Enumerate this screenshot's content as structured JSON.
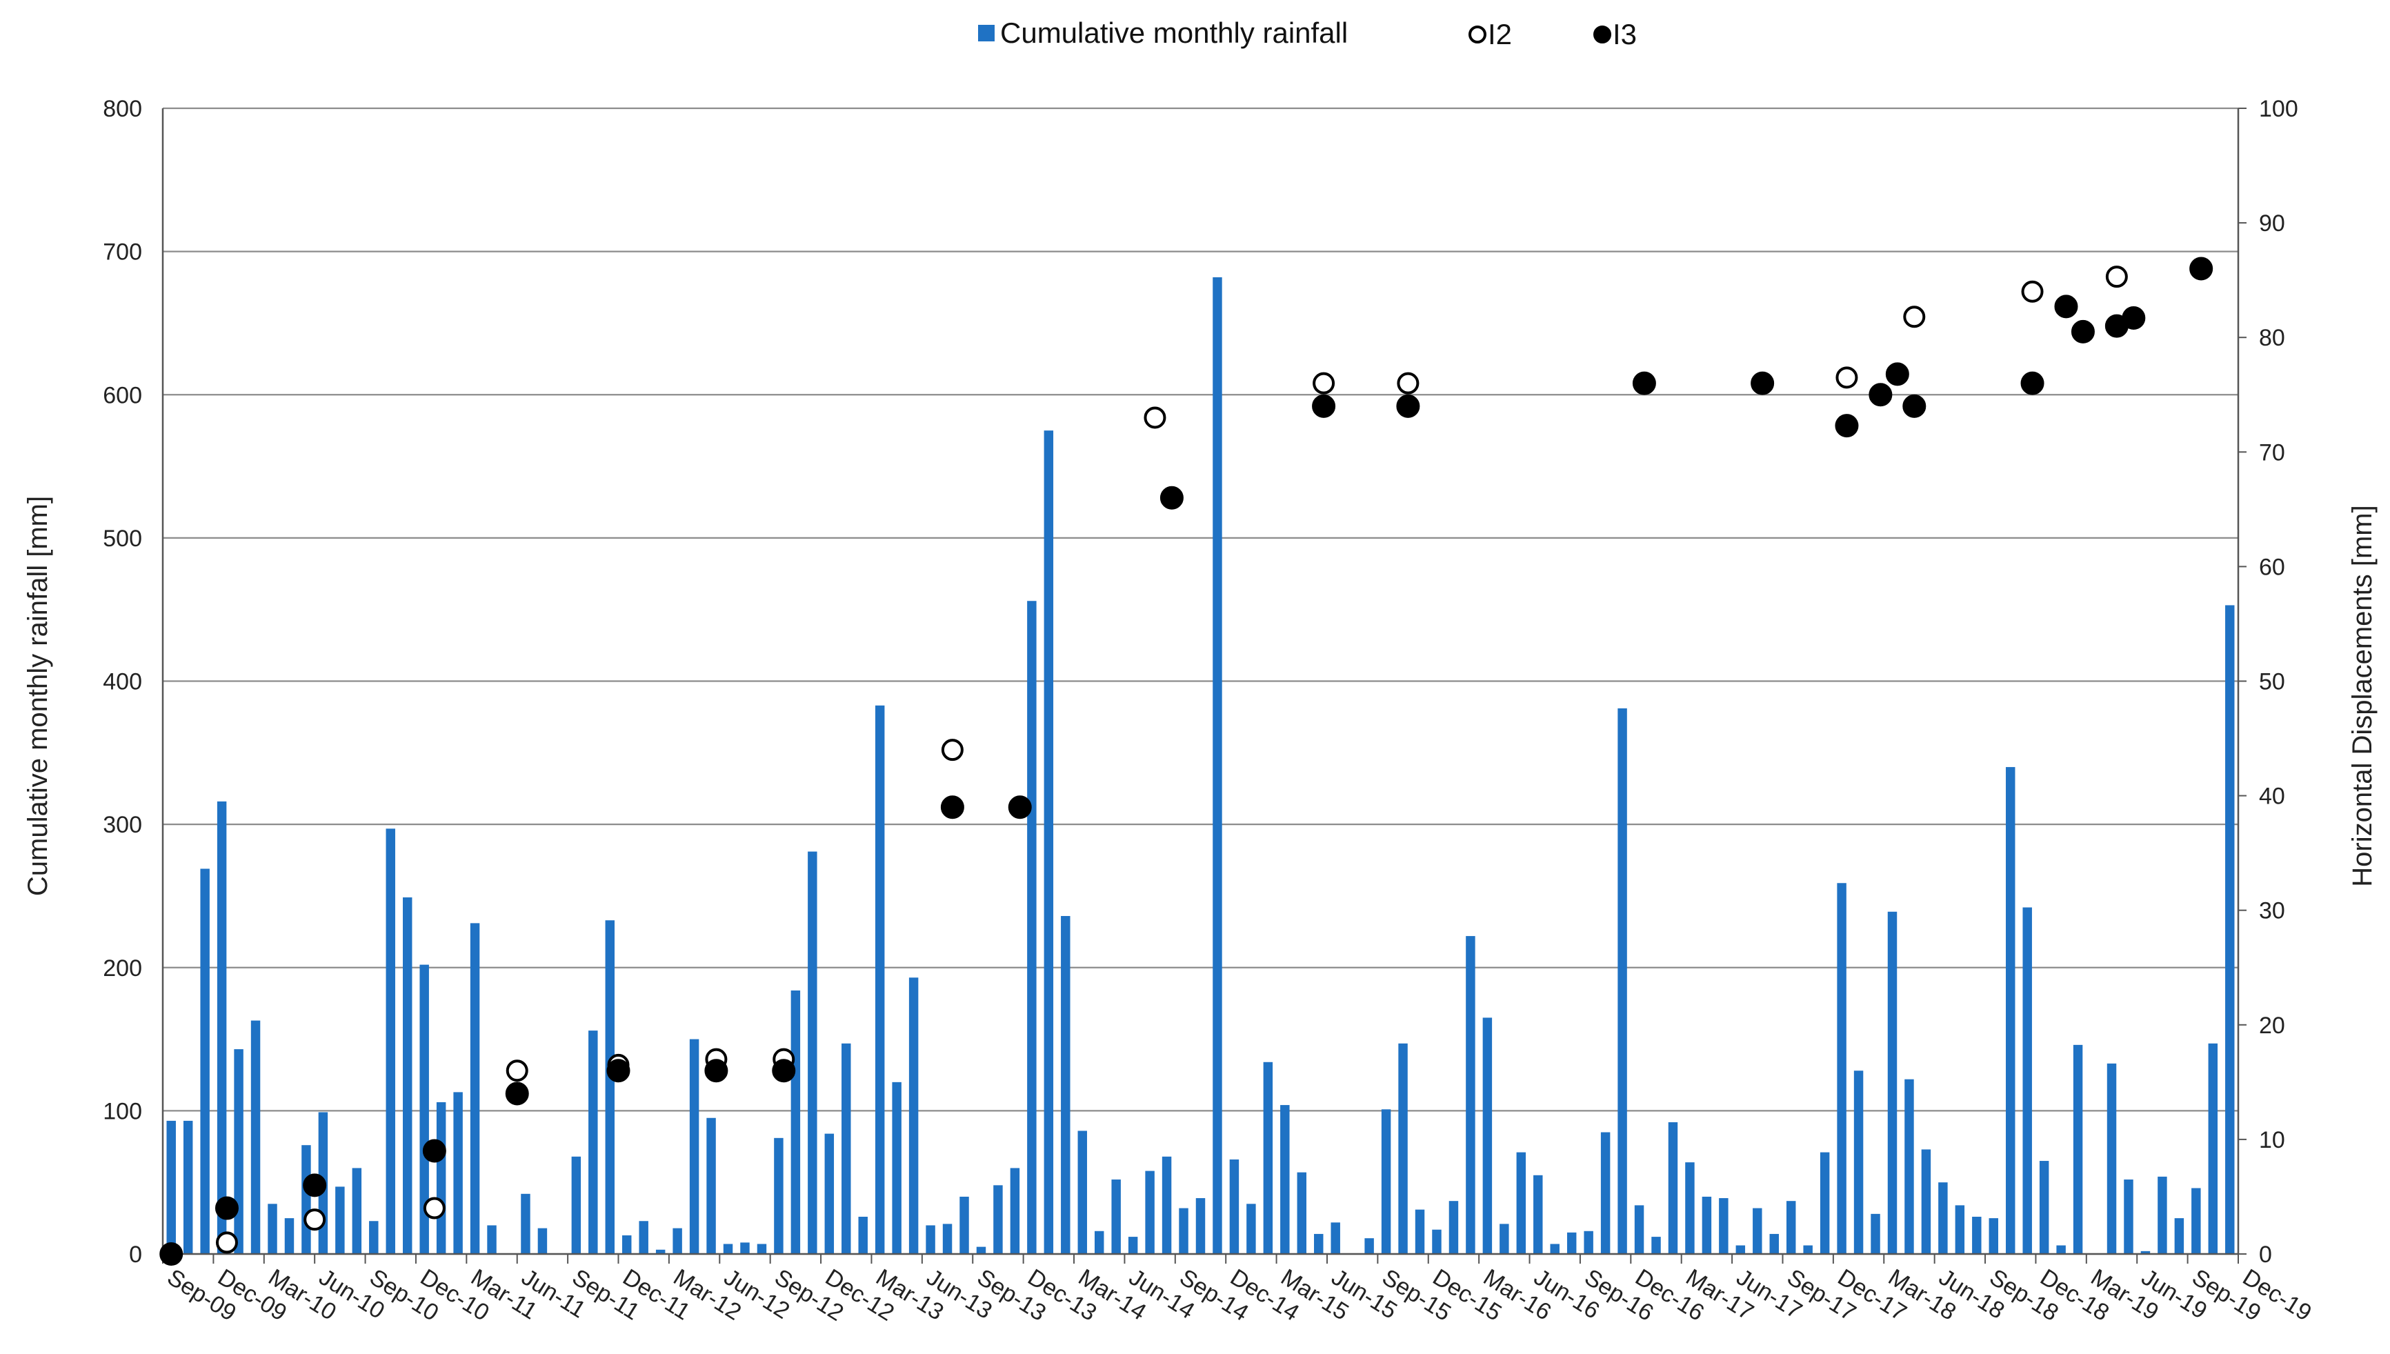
{
  "chart_data": {
    "type": "bar+scatter",
    "title": "",
    "ylabel": "Cumulative monthly rainfall  [mm]",
    "y2label": "Horizontal Displacements [mm]",
    "ylim": [
      0,
      800
    ],
    "y2lim": [
      0,
      100
    ],
    "yticks": [
      "0",
      "100",
      "200",
      "300",
      "400",
      "500",
      "600",
      "700",
      "800"
    ],
    "y2ticks": [
      "0",
      "10",
      "20",
      "30",
      "40",
      "50",
      "60",
      "70",
      "80",
      "90",
      "100"
    ],
    "legend_position": "top-center",
    "grid": true,
    "x_tick_labels": [
      "Sep-09",
      "Dec-09",
      "Mar-10",
      "Jun-10",
      "Sep-10",
      "Dec-10",
      "Mar-11",
      "Jun-11",
      "Sep-11",
      "Dec-11",
      "Mar-12",
      "Jun-12",
      "Sep-12",
      "Dec-12",
      "Mar-13",
      "Jun-13",
      "Sep-13",
      "Dec-13",
      "Mar-14",
      "Jun-14",
      "Sep-14",
      "Dec-14",
      "Mar-15",
      "Jun-15",
      "Sep-15",
      "Dec-15",
      "Mar-16",
      "Jun-16",
      "Sep-16",
      "Dec-16",
      "Mar-17",
      "Jun-17",
      "Sep-17",
      "Dec-17",
      "Mar-18",
      "Jun-18",
      "Sep-18",
      "Dec-18",
      "Mar-19",
      "Jun-19",
      "Sep-19",
      "Dec-19"
    ],
    "months_start": "Sep-09",
    "series": [
      {
        "name": "Cumulative monthly rainfall",
        "type": "bar",
        "axis": "left",
        "color": "#1f72c4",
        "values": [
          93,
          93,
          269,
          316,
          143,
          163,
          35,
          25,
          76,
          99,
          47,
          60,
          23,
          297,
          249,
          202,
          106,
          113,
          231,
          20,
          0,
          42,
          18,
          0,
          68,
          156,
          233,
          13,
          23,
          3,
          18,
          150,
          95,
          7,
          8,
          7,
          81,
          184,
          281,
          84,
          147,
          26,
          383,
          120,
          193,
          20,
          21,
          40,
          5,
          48,
          60,
          456,
          575,
          236,
          86,
          16,
          52,
          12,
          58,
          68,
          32,
          39,
          682,
          66,
          35,
          134,
          104,
          57,
          14,
          22,
          0,
          11,
          101,
          147,
          31,
          17,
          37,
          222,
          165,
          21,
          71,
          55,
          7,
          15,
          16,
          85,
          381,
          34,
          12,
          92,
          64,
          40,
          39,
          6,
          32,
          14,
          37,
          6,
          71,
          259,
          128,
          28,
          239,
          122,
          73,
          50,
          34,
          26,
          25,
          340,
          242,
          65,
          6,
          146,
          0,
          133,
          52,
          2,
          54,
          25,
          46,
          147,
          453
        ]
      },
      {
        "name": "I2",
        "type": "scatter",
        "axis": "right",
        "marker": "open-circle",
        "points": [
          {
            "m": 0,
            "v": 0
          },
          {
            "m": 3.3,
            "v": 1
          },
          {
            "m": 8.5,
            "v": 3
          },
          {
            "m": 15.6,
            "v": 4
          },
          {
            "m": 20.5,
            "v": 16
          },
          {
            "m": 26.5,
            "v": 16.5
          },
          {
            "m": 32.3,
            "v": 17
          },
          {
            "m": 36.3,
            "v": 17
          },
          {
            "m": 46.3,
            "v": 44
          },
          {
            "m": 58.3,
            "v": 73
          },
          {
            "m": 68.3,
            "v": 76
          },
          {
            "m": 73.3,
            "v": 76
          },
          {
            "m": 99.3,
            "v": 76.5
          },
          {
            "m": 103.3,
            "v": 81.8
          },
          {
            "m": 110.3,
            "v": 84
          },
          {
            "m": 115.3,
            "v": 85.3
          }
        ]
      },
      {
        "name": "I3",
        "type": "scatter",
        "axis": "right",
        "marker": "filled-circle",
        "points": [
          {
            "m": 0,
            "v": 0
          },
          {
            "m": 3.3,
            "v": 4
          },
          {
            "m": 8.5,
            "v": 6
          },
          {
            "m": 15.6,
            "v": 9
          },
          {
            "m": 20.5,
            "v": 14
          },
          {
            "m": 26.5,
            "v": 16
          },
          {
            "m": 32.3,
            "v": 16
          },
          {
            "m": 36.3,
            "v": 16
          },
          {
            "m": 46.3,
            "v": 39
          },
          {
            "m": 50.3,
            "v": 39
          },
          {
            "m": 59.3,
            "v": 66
          },
          {
            "m": 68.3,
            "v": 74
          },
          {
            "m": 73.3,
            "v": 74
          },
          {
            "m": 87.3,
            "v": 76
          },
          {
            "m": 94.3,
            "v": 76
          },
          {
            "m": 99.3,
            "v": 72.3
          },
          {
            "m": 101.3,
            "v": 75
          },
          {
            "m": 102.3,
            "v": 76.8
          },
          {
            "m": 103.3,
            "v": 74
          },
          {
            "m": 110.3,
            "v": 76
          },
          {
            "m": 112.3,
            "v": 82.7
          },
          {
            "m": 113.3,
            "v": 80.5
          },
          {
            "m": 115.3,
            "v": 81
          },
          {
            "m": 116.3,
            "v": 81.7
          },
          {
            "m": 120.3,
            "v": 86
          }
        ]
      }
    ]
  }
}
